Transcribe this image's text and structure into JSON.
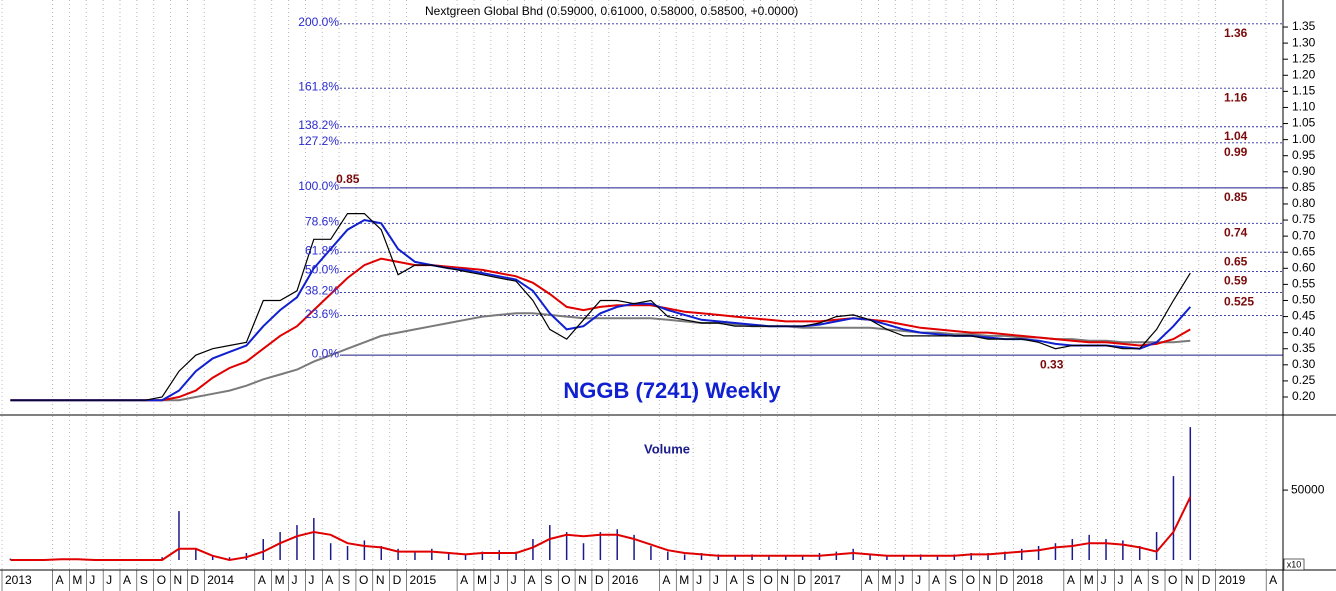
{
  "chart_data": {
    "type": "stock",
    "title": "Nextgreen Global Bhd (0.59000, 0.61000, 0.58000, 0.58500, +0.0000)",
    "subtitle": "NGGB (7241) Weekly",
    "xlim": [
      "2013-01",
      "2019-05"
    ],
    "xticks": [
      {
        "value": "2013-01",
        "label": "2013"
      },
      {
        "value": "2013-04",
        "label": "A"
      },
      {
        "value": "2013-05",
        "label": "M"
      },
      {
        "value": "2013-06",
        "label": "J"
      },
      {
        "value": "2013-07",
        "label": "J"
      },
      {
        "value": "2013-08",
        "label": "A"
      },
      {
        "value": "2013-09",
        "label": "S"
      },
      {
        "value": "2013-10",
        "label": "O"
      },
      {
        "value": "2013-11",
        "label": "N"
      },
      {
        "value": "2013-12",
        "label": "D"
      },
      {
        "value": "2014-01",
        "label": "2014"
      },
      {
        "value": "2014-04",
        "label": "A"
      },
      {
        "value": "2014-05",
        "label": "M"
      },
      {
        "value": "2014-06",
        "label": "J"
      },
      {
        "value": "2014-07",
        "label": "J"
      },
      {
        "value": "2014-08",
        "label": "A"
      },
      {
        "value": "2014-09",
        "label": "S"
      },
      {
        "value": "2014-10",
        "label": "O"
      },
      {
        "value": "2014-11",
        "label": "N"
      },
      {
        "value": "2014-12",
        "label": "D"
      },
      {
        "value": "2015-01",
        "label": "2015"
      },
      {
        "value": "2015-04",
        "label": "A"
      },
      {
        "value": "2015-05",
        "label": "M"
      },
      {
        "value": "2015-06",
        "label": "J"
      },
      {
        "value": "2015-07",
        "label": "J"
      },
      {
        "value": "2015-08",
        "label": "A"
      },
      {
        "value": "2015-09",
        "label": "S"
      },
      {
        "value": "2015-10",
        "label": "O"
      },
      {
        "value": "2015-11",
        "label": "N"
      },
      {
        "value": "2015-12",
        "label": "D"
      },
      {
        "value": "2016-01",
        "label": "2016"
      },
      {
        "value": "2016-04",
        "label": "A"
      },
      {
        "value": "2016-05",
        "label": "M"
      },
      {
        "value": "2016-06",
        "label": "J"
      },
      {
        "value": "2016-07",
        "label": "J"
      },
      {
        "value": "2016-08",
        "label": "A"
      },
      {
        "value": "2016-09",
        "label": "S"
      },
      {
        "value": "2016-10",
        "label": "O"
      },
      {
        "value": "2016-11",
        "label": "N"
      },
      {
        "value": "2016-12",
        "label": "D"
      },
      {
        "value": "2017-01",
        "label": "2017"
      },
      {
        "value": "2017-04",
        "label": "A"
      },
      {
        "value": "2017-05",
        "label": "M"
      },
      {
        "value": "2017-06",
        "label": "J"
      },
      {
        "value": "2017-07",
        "label": "J"
      },
      {
        "value": "2017-08",
        "label": "A"
      },
      {
        "value": "2017-09",
        "label": "S"
      },
      {
        "value": "2017-10",
        "label": "O"
      },
      {
        "value": "2017-11",
        "label": "N"
      },
      {
        "value": "2017-12",
        "label": "D"
      },
      {
        "value": "2018-01",
        "label": "2018"
      },
      {
        "value": "2018-04",
        "label": "A"
      },
      {
        "value": "2018-05",
        "label": "M"
      },
      {
        "value": "2018-06",
        "label": "J"
      },
      {
        "value": "2018-07",
        "label": "J"
      },
      {
        "value": "2018-08",
        "label": "A"
      },
      {
        "value": "2018-09",
        "label": "S"
      },
      {
        "value": "2018-10",
        "label": "O"
      },
      {
        "value": "2018-11",
        "label": "N"
      },
      {
        "value": "2018-12",
        "label": "D"
      },
      {
        "value": "2019-01",
        "label": "2019"
      },
      {
        "value": "2019-04",
        "label": "A"
      }
    ],
    "x": [
      "2013-01",
      "2013-02",
      "2013-03",
      "2013-04",
      "2013-05",
      "2013-06",
      "2013-07",
      "2013-08",
      "2013-09",
      "2013-10",
      "2013-11",
      "2013-12",
      "2014-01",
      "2014-02",
      "2014-03",
      "2014-04",
      "2014-05",
      "2014-06",
      "2014-07",
      "2014-08",
      "2014-09",
      "2014-10",
      "2014-11",
      "2014-12",
      "2015-01",
      "2015-02",
      "2015-03",
      "2015-04",
      "2015-05",
      "2015-06",
      "2015-07",
      "2015-08",
      "2015-09",
      "2015-10",
      "2015-11",
      "2015-12",
      "2016-01",
      "2016-02",
      "2016-03",
      "2016-04",
      "2016-05",
      "2016-06",
      "2016-07",
      "2016-08",
      "2016-09",
      "2016-10",
      "2016-11",
      "2016-12",
      "2017-01",
      "2017-02",
      "2017-03",
      "2017-04",
      "2017-05",
      "2017-06",
      "2017-07",
      "2017-08",
      "2017-09",
      "2017-10",
      "2017-11",
      "2017-12",
      "2018-01",
      "2018-02",
      "2018-03",
      "2018-04",
      "2018-05",
      "2018-06",
      "2018-07",
      "2018-08",
      "2018-09",
      "2018-10",
      "2018-11"
    ],
    "price": {
      "ylim": [
        0.144,
        1.434
      ],
      "yticks": [
        {
          "value": 0.2,
          "label": "0.20"
        },
        {
          "value": 0.25,
          "label": "0.25"
        },
        {
          "value": 0.3,
          "label": "0.30"
        },
        {
          "value": 0.35,
          "label": "0.35"
        },
        {
          "value": 0.4,
          "label": "0.40"
        },
        {
          "value": 0.45,
          "label": "0.45"
        },
        {
          "value": 0.5,
          "label": "0.50"
        },
        {
          "value": 0.55,
          "label": "0.55"
        },
        {
          "value": 0.6,
          "label": "0.60"
        },
        {
          "value": 0.65,
          "label": "0.65"
        },
        {
          "value": 0.7,
          "label": "0.70"
        },
        {
          "value": 0.75,
          "label": "0.75"
        },
        {
          "value": 0.8,
          "label": "0.80"
        },
        {
          "value": 0.85,
          "label": "0.85"
        },
        {
          "value": 0.9,
          "label": "0.90"
        },
        {
          "value": 0.95,
          "label": "0.95"
        },
        {
          "value": 1.0,
          "label": "1.00"
        },
        {
          "value": 1.05,
          "label": "1.05"
        },
        {
          "value": 1.1,
          "label": "1.10"
        },
        {
          "value": 1.15,
          "label": "1.15"
        },
        {
          "value": 1.2,
          "label": "1.20"
        },
        {
          "value": 1.25,
          "label": "1.25"
        },
        {
          "value": 1.3,
          "label": "1.30"
        },
        {
          "value": 1.35,
          "label": "1.35"
        }
      ],
      "series": [
        {
          "color": "#7a7a7a",
          "values": [
            0.19,
            0.19,
            0.19,
            0.19,
            0.19,
            0.19,
            0.19,
            0.19,
            0.19,
            0.19,
            0.19,
            0.2,
            0.21,
            0.22,
            0.235,
            0.255,
            0.27,
            0.285,
            0.31,
            0.33,
            0.35,
            0.37,
            0.39,
            0.4,
            0.41,
            0.42,
            0.43,
            0.44,
            0.45,
            0.455,
            0.46,
            0.46,
            0.455,
            0.45,
            0.445,
            0.445,
            0.445,
            0.445,
            0.445,
            0.44,
            0.435,
            0.43,
            0.43,
            0.425,
            0.42,
            0.42,
            0.42,
            0.415,
            0.415,
            0.415,
            0.415,
            0.415,
            0.41,
            0.405,
            0.4,
            0.4,
            0.395,
            0.395,
            0.39,
            0.39,
            0.385,
            0.385,
            0.38,
            0.38,
            0.375,
            0.375,
            0.37,
            0.37,
            0.37,
            0.37,
            0.375
          ]
        },
        {
          "color": "#e00000",
          "values": [
            0.19,
            0.19,
            0.19,
            0.19,
            0.19,
            0.19,
            0.19,
            0.19,
            0.19,
            0.19,
            0.2,
            0.22,
            0.26,
            0.29,
            0.31,
            0.35,
            0.39,
            0.42,
            0.47,
            0.52,
            0.57,
            0.61,
            0.63,
            0.62,
            0.61,
            0.61,
            0.605,
            0.6,
            0.595,
            0.585,
            0.575,
            0.555,
            0.52,
            0.48,
            0.47,
            0.48,
            0.485,
            0.485,
            0.485,
            0.475,
            0.465,
            0.46,
            0.455,
            0.45,
            0.445,
            0.44,
            0.435,
            0.435,
            0.435,
            0.44,
            0.445,
            0.44,
            0.435,
            0.425,
            0.415,
            0.41,
            0.405,
            0.4,
            0.4,
            0.395,
            0.39,
            0.385,
            0.38,
            0.375,
            0.37,
            0.37,
            0.365,
            0.36,
            0.365,
            0.38,
            0.41
          ]
        },
        {
          "color": "#1020d0",
          "values": [
            0.19,
            0.19,
            0.19,
            0.19,
            0.19,
            0.19,
            0.19,
            0.19,
            0.19,
            0.19,
            0.22,
            0.28,
            0.32,
            0.34,
            0.36,
            0.42,
            0.47,
            0.51,
            0.6,
            0.66,
            0.72,
            0.75,
            0.74,
            0.66,
            0.62,
            0.61,
            0.6,
            0.595,
            0.585,
            0.575,
            0.565,
            0.53,
            0.46,
            0.41,
            0.42,
            0.46,
            0.48,
            0.49,
            0.49,
            0.47,
            0.455,
            0.44,
            0.435,
            0.43,
            0.425,
            0.42,
            0.42,
            0.42,
            0.425,
            0.435,
            0.445,
            0.44,
            0.425,
            0.41,
            0.4,
            0.395,
            0.39,
            0.39,
            0.385,
            0.38,
            0.38,
            0.375,
            0.365,
            0.36,
            0.36,
            0.36,
            0.355,
            0.35,
            0.37,
            0.42,
            0.48
          ]
        },
        {
          "color": "#000000",
          "values": [
            0.19,
            0.19,
            0.19,
            0.19,
            0.19,
            0.19,
            0.19,
            0.19,
            0.19,
            0.2,
            0.28,
            0.33,
            0.35,
            0.36,
            0.37,
            0.5,
            0.5,
            0.53,
            0.69,
            0.69,
            0.77,
            0.77,
            0.72,
            0.58,
            0.61,
            0.61,
            0.6,
            0.59,
            0.58,
            0.57,
            0.56,
            0.5,
            0.41,
            0.38,
            0.44,
            0.5,
            0.5,
            0.49,
            0.5,
            0.45,
            0.44,
            0.43,
            0.43,
            0.42,
            0.42,
            0.42,
            0.42,
            0.42,
            0.43,
            0.45,
            0.455,
            0.44,
            0.41,
            0.39,
            0.39,
            0.39,
            0.39,
            0.39,
            0.38,
            0.38,
            0.38,
            0.37,
            0.35,
            0.36,
            0.36,
            0.36,
            0.35,
            0.35,
            0.41,
            0.5,
            0.585
          ]
        }
      ],
      "fib_levels": [
        {
          "ratio": "200.0%",
          "value": 1.36,
          "show_value": true,
          "style": "dotted"
        },
        {
          "ratio": "161.8%",
          "value": 1.16,
          "show_value": true,
          "style": "dotted"
        },
        {
          "ratio": "138.2%",
          "value": 1.04,
          "show_value": true,
          "style": "dotted"
        },
        {
          "ratio": "127.2%",
          "value": 0.99,
          "show_value": true,
          "style": "dotted"
        },
        {
          "ratio": "100.0%",
          "value": 0.85,
          "show_value": true,
          "style": "solid"
        },
        {
          "ratio": "78.6%",
          "value": 0.74,
          "show_value": true,
          "style": "dotted"
        },
        {
          "ratio": "61.8%",
          "value": 0.65,
          "show_value": true,
          "style": "dotted"
        },
        {
          "ratio": "50.0%",
          "value": 0.59,
          "show_value": true,
          "style": "dotted"
        },
        {
          "ratio": "38.2%",
          "value": 0.525,
          "show_value": true,
          "style": "dotted"
        },
        {
          "ratio": "23.6%",
          "value": 0.453,
          "show_value": false,
          "style": "dotted"
        },
        {
          "ratio": "0.0%",
          "value": 0.33,
          "show_value": false,
          "style": "solid"
        }
      ],
      "high": {
        "value": 0.85,
        "x": "2014-09"
      },
      "low": {
        "value": 0.33,
        "x": "2018-03"
      }
    },
    "volume": {
      "title": "Volume",
      "unit_label": "x10",
      "ylim": [
        0,
        103000
      ],
      "yticks": [
        50000
      ],
      "color": "#1a1a8c",
      "values": [
        1000,
        500,
        500,
        1000,
        500,
        500,
        500,
        500,
        500,
        2000,
        35000,
        8000,
        3000,
        2000,
        5000,
        15000,
        20000,
        25000,
        30000,
        12000,
        10000,
        14000,
        10000,
        8000,
        6000,
        8000,
        5000,
        4000,
        6000,
        7000,
        6000,
        15000,
        25000,
        20000,
        12000,
        20000,
        22000,
        18000,
        10000,
        6000,
        4000,
        5000,
        4000,
        3000,
        4000,
        3000,
        3000,
        3000,
        5000,
        6000,
        8000,
        4000,
        3000,
        3000,
        4000,
        3000,
        4000,
        5000,
        5000,
        6000,
        8000,
        10000,
        12000,
        15000,
        18000,
        15000,
        14000,
        10000,
        20000,
        60000,
        95000
      ],
      "average": {
        "color": "#e00000",
        "values": [
          0,
          0,
          0,
          500,
          500,
          0,
          0,
          0,
          0,
          0,
          8000,
          8000,
          3000,
          0,
          2000,
          6000,
          12000,
          17000,
          20000,
          18000,
          12000,
          10000,
          9000,
          6000,
          6000,
          6000,
          5000,
          4000,
          5000,
          5000,
          5000,
          9000,
          15000,
          18000,
          17000,
          18000,
          18000,
          15000,
          11000,
          7000,
          5000,
          4000,
          3000,
          3000,
          3000,
          3000,
          3000,
          3000,
          3000,
          4000,
          5000,
          4000,
          3000,
          3000,
          3000,
          3000,
          3000,
          4000,
          4000,
          5000,
          6000,
          7000,
          9000,
          10000,
          12000,
          12000,
          11000,
          9000,
          6000,
          20000,
          45000
        ]
      }
    }
  }
}
